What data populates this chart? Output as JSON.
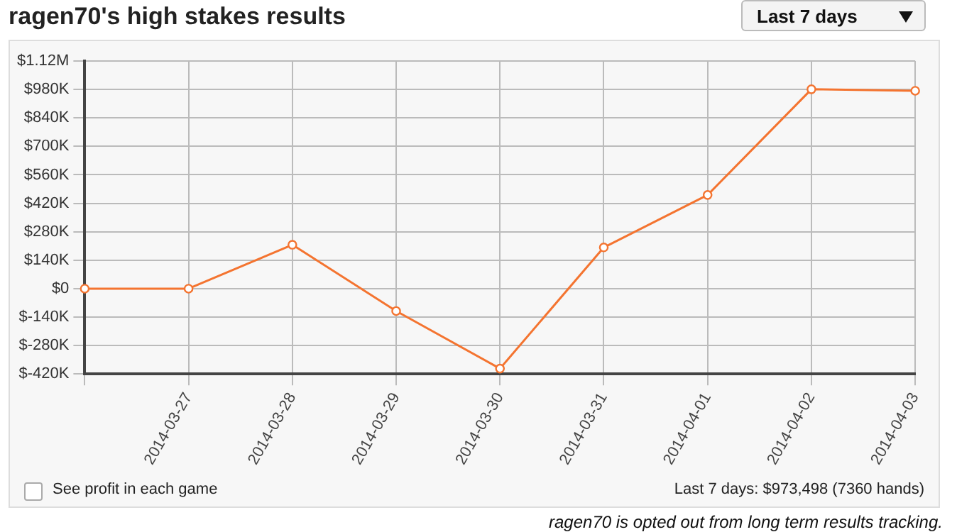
{
  "chart_data": {
    "type": "line",
    "title": "ragen70's high stakes results",
    "categories": [
      null,
      "2014-03-27",
      "2014-03-28",
      "2014-03-29",
      "2014-03-30",
      "2014-03-31",
      "2014-04-01",
      "2014-04-02",
      "2014-04-03"
    ],
    "series": [
      {
        "color": "#f47430",
        "values": [
          0,
          0,
          216000,
          -110000,
          -393000,
          203000,
          461000,
          981000,
          973498
        ]
      }
    ],
    "ylim": [
      -420000,
      1120000
    ],
    "yticks": [
      {
        "value": -420000,
        "label": "$-420K"
      },
      {
        "value": -280000,
        "label": "$-280K"
      },
      {
        "value": -140000,
        "label": "$-140K"
      },
      {
        "value": 0,
        "label": "$0"
      },
      {
        "value": 140000,
        "label": "$140K"
      },
      {
        "value": 280000,
        "label": "$280K"
      },
      {
        "value": 420000,
        "label": "$420K"
      },
      {
        "value": 560000,
        "label": "$560K"
      },
      {
        "value": 700000,
        "label": "$700K"
      },
      {
        "value": 840000,
        "label": "$840K"
      },
      {
        "value": 980000,
        "label": "$980K"
      },
      {
        "value": 1120000,
        "label": "$1.12M"
      }
    ],
    "grid": true,
    "legend": false,
    "marker": "circle",
    "line_style": "solid",
    "annotations": [
      "Last 7 days",
      "See profit in each game",
      "Last 7 days: $973,498 (7360 hands)",
      "ragen70 is opted out from long term results tracking."
    ]
  }
}
